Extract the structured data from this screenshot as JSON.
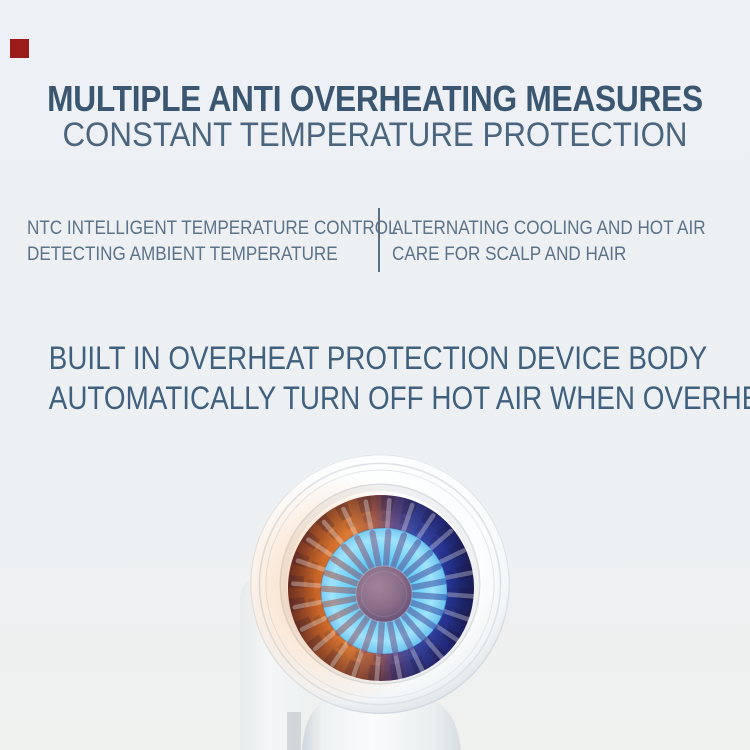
{
  "title": {
    "line1": "MULTIPLE ANTI OVERHEATING MEASURES",
    "line2": "CONSTANT TEMPERATURE PROTECTION"
  },
  "features": {
    "left": {
      "line1": "NTC INTELLIGENT TEMPERATURE CONTROL",
      "line2": "DETECTING AMBIENT TEMPERATURE"
    },
    "right": {
      "line1": "ALTERNATING COOLING AND HOT AIR",
      "line2": "CARE FOR SCALP AND HAIR"
    }
  },
  "subheading": {
    "line1": "BUILT IN OVERHEAT PROTECTION DEVICE BODY",
    "line2": "AUTOMATICALLY TURN OFF HOT AIR WHEN OVERHEATED"
  },
  "colors": {
    "background": "#edf0f3",
    "title_text": "#3a5670",
    "body_text": "#5b7289",
    "marker_red": "#9b1b1b",
    "fan_orange": "#d8742f",
    "fan_blue": "#2b44a4",
    "fan_cyan": "#63c8f6",
    "hub_mauve": "#8a6e89",
    "device_white": "#fbfcfd"
  }
}
